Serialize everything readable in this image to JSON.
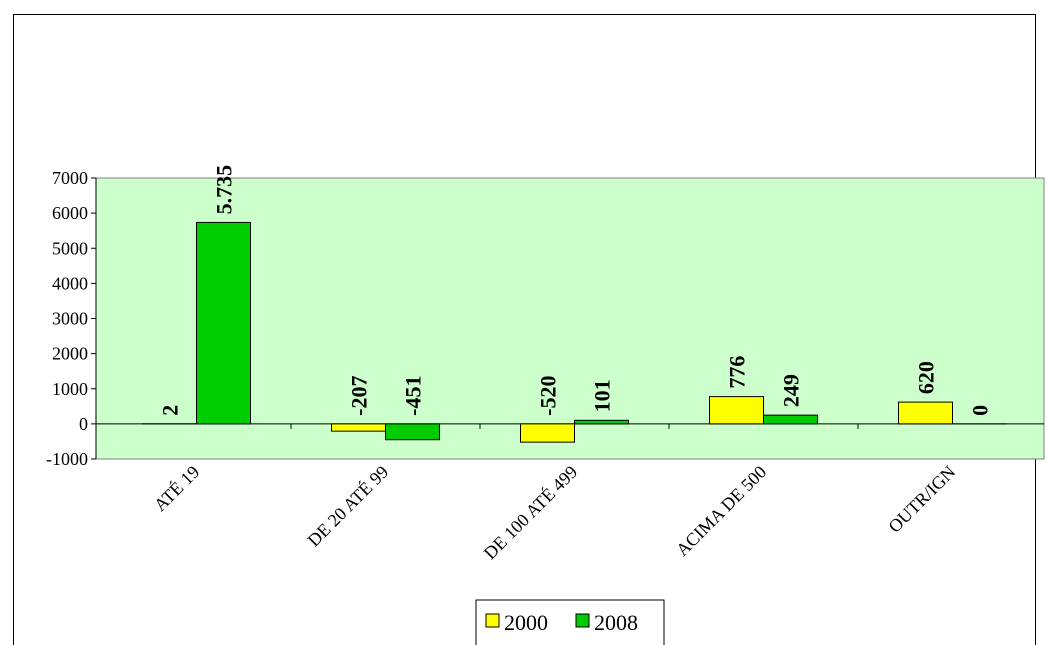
{
  "chart_data": {
    "type": "bar",
    "categories": [
      "ATÉ 19",
      "DE 20 ATÉ 99",
      "DE 100 ATÉ 499",
      "ACIMA DE 500",
      "OUTR/IGN"
    ],
    "series": [
      {
        "name": "2000",
        "color": "#ffff00",
        "values": [
          2,
          -207,
          -520,
          776,
          620
        ]
      },
      {
        "name": "2008",
        "color": "#00cc00",
        "values": [
          5735,
          -451,
          101,
          249,
          0
        ],
        "value_labels": [
          "5.735",
          "-451",
          "101",
          "249",
          "0"
        ]
      }
    ],
    "ylim": [
      -1000,
      7000
    ],
    "yticks": [
      -1000,
      0,
      1000,
      2000,
      3000,
      4000,
      5000,
      6000,
      7000
    ],
    "plot_background": "#ccffcc",
    "legend": "bottom"
  }
}
